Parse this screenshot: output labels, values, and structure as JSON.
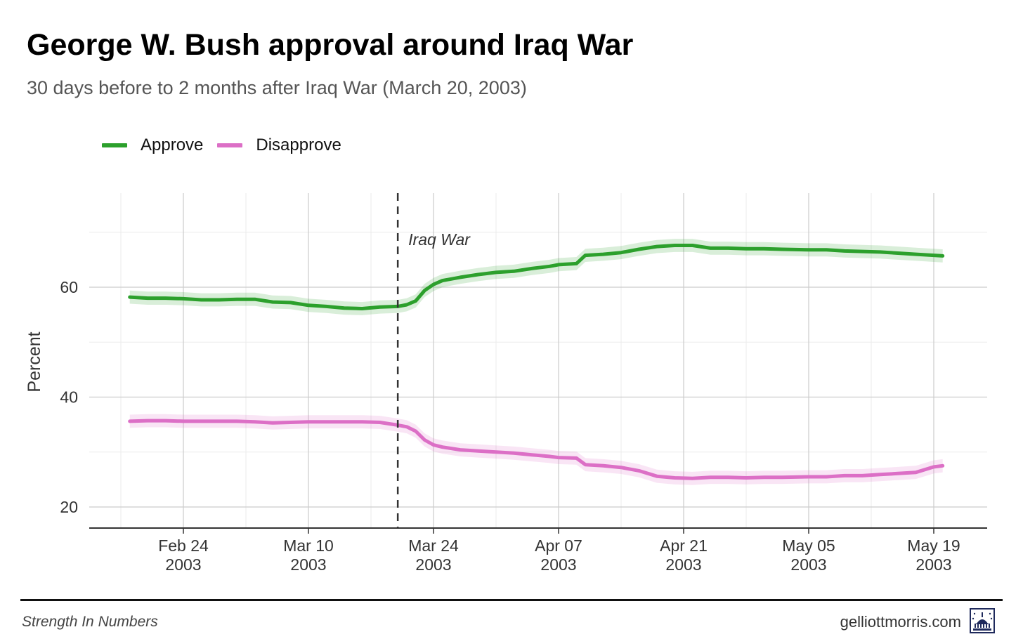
{
  "header": {
    "title": "George W. Bush approval around Iraq War",
    "subtitle": "30 days before to 2 months after Iraq War (March 20, 2003)"
  },
  "footer": {
    "left_text": "Strength In Numbers",
    "right_text": "gelliottmorris.com",
    "logo_icon": "capitol-dome-icon"
  },
  "chart_data": {
    "type": "line",
    "xlabel": "",
    "ylabel": "Percent",
    "x_start": "2003-02-18",
    "x_end": "2003-05-20",
    "ylim": [
      16,
      78
    ],
    "grid": true,
    "legend_position": "top-left",
    "y_ticks": [
      20,
      40,
      60
    ],
    "x_ticks": [
      {
        "date": "2003-02-24",
        "label": "Feb 24",
        "sublabel": "2003"
      },
      {
        "date": "2003-03-10",
        "label": "Mar 10",
        "sublabel": "2003"
      },
      {
        "date": "2003-03-24",
        "label": "Mar 24",
        "sublabel": "2003"
      },
      {
        "date": "2003-04-07",
        "label": "Apr 07",
        "sublabel": "2003"
      },
      {
        "date": "2003-04-21",
        "label": "Apr 21",
        "sublabel": "2003"
      },
      {
        "date": "2003-05-05",
        "label": "May 05",
        "sublabel": "2003"
      },
      {
        "date": "2003-05-19",
        "label": "May 19",
        "sublabel": "2003"
      }
    ],
    "annotations": [
      {
        "date": "2003-03-20",
        "label": "Iraq War",
        "style": "dashed-vertical"
      }
    ],
    "series": [
      {
        "name": "Approve",
        "color": "#2ca02c",
        "band_color": "#2ca02c",
        "points": [
          [
            "2003-02-18",
            58.2
          ],
          [
            "2003-02-20",
            58.0
          ],
          [
            "2003-02-22",
            58.0
          ],
          [
            "2003-02-24",
            57.9
          ],
          [
            "2003-02-26",
            57.7
          ],
          [
            "2003-02-28",
            57.7
          ],
          [
            "2003-03-02",
            57.8
          ],
          [
            "2003-03-04",
            57.8
          ],
          [
            "2003-03-06",
            57.3
          ],
          [
            "2003-03-08",
            57.2
          ],
          [
            "2003-03-10",
            56.7
          ],
          [
            "2003-03-12",
            56.5
          ],
          [
            "2003-03-14",
            56.2
          ],
          [
            "2003-03-16",
            56.1
          ],
          [
            "2003-03-18",
            56.4
          ],
          [
            "2003-03-20",
            56.5
          ],
          [
            "2003-03-21",
            56.8
          ],
          [
            "2003-03-22",
            57.5
          ],
          [
            "2003-03-23",
            59.4
          ],
          [
            "2003-03-24",
            60.5
          ],
          [
            "2003-03-25",
            61.2
          ],
          [
            "2003-03-27",
            61.8
          ],
          [
            "2003-03-29",
            62.3
          ],
          [
            "2003-03-31",
            62.7
          ],
          [
            "2003-04-02",
            62.9
          ],
          [
            "2003-04-04",
            63.4
          ],
          [
            "2003-04-06",
            63.8
          ],
          [
            "2003-04-07",
            64.1
          ],
          [
            "2003-04-09",
            64.3
          ],
          [
            "2003-04-10",
            65.8
          ],
          [
            "2003-04-12",
            66.0
          ],
          [
            "2003-04-14",
            66.3
          ],
          [
            "2003-04-16",
            66.9
          ],
          [
            "2003-04-18",
            67.4
          ],
          [
            "2003-04-20",
            67.6
          ],
          [
            "2003-04-22",
            67.6
          ],
          [
            "2003-04-24",
            67.1
          ],
          [
            "2003-04-26",
            67.1
          ],
          [
            "2003-04-28",
            67.0
          ],
          [
            "2003-04-30",
            67.0
          ],
          [
            "2003-05-02",
            66.9
          ],
          [
            "2003-05-05",
            66.8
          ],
          [
            "2003-05-07",
            66.8
          ],
          [
            "2003-05-09",
            66.6
          ],
          [
            "2003-05-11",
            66.5
          ],
          [
            "2003-05-13",
            66.4
          ],
          [
            "2003-05-15",
            66.2
          ],
          [
            "2003-05-17",
            66.0
          ],
          [
            "2003-05-19",
            65.8
          ],
          [
            "2003-05-20",
            65.7
          ]
        ]
      },
      {
        "name": "Disapprove",
        "color": "#dc6fc6",
        "band_color": "#dc6fc6",
        "points": [
          [
            "2003-02-18",
            35.6
          ],
          [
            "2003-02-20",
            35.7
          ],
          [
            "2003-02-22",
            35.7
          ],
          [
            "2003-02-24",
            35.6
          ],
          [
            "2003-02-26",
            35.6
          ],
          [
            "2003-02-28",
            35.6
          ],
          [
            "2003-03-02",
            35.6
          ],
          [
            "2003-03-04",
            35.5
          ],
          [
            "2003-03-06",
            35.3
          ],
          [
            "2003-03-08",
            35.4
          ],
          [
            "2003-03-10",
            35.5
          ],
          [
            "2003-03-12",
            35.5
          ],
          [
            "2003-03-14",
            35.5
          ],
          [
            "2003-03-16",
            35.5
          ],
          [
            "2003-03-18",
            35.4
          ],
          [
            "2003-03-20",
            34.9
          ],
          [
            "2003-03-21",
            34.6
          ],
          [
            "2003-03-22",
            33.8
          ],
          [
            "2003-03-23",
            32.2
          ],
          [
            "2003-03-24",
            31.3
          ],
          [
            "2003-03-25",
            30.9
          ],
          [
            "2003-03-27",
            30.4
          ],
          [
            "2003-03-29",
            30.2
          ],
          [
            "2003-03-31",
            30.0
          ],
          [
            "2003-04-02",
            29.8
          ],
          [
            "2003-04-04",
            29.5
          ],
          [
            "2003-04-06",
            29.2
          ],
          [
            "2003-04-07",
            29.0
          ],
          [
            "2003-04-09",
            28.9
          ],
          [
            "2003-04-10",
            27.7
          ],
          [
            "2003-04-12",
            27.5
          ],
          [
            "2003-04-14",
            27.2
          ],
          [
            "2003-04-16",
            26.6
          ],
          [
            "2003-04-18",
            25.6
          ],
          [
            "2003-04-20",
            25.3
          ],
          [
            "2003-04-22",
            25.2
          ],
          [
            "2003-04-24",
            25.4
          ],
          [
            "2003-04-26",
            25.4
          ],
          [
            "2003-04-28",
            25.3
          ],
          [
            "2003-04-30",
            25.4
          ],
          [
            "2003-05-02",
            25.4
          ],
          [
            "2003-05-05",
            25.5
          ],
          [
            "2003-05-07",
            25.5
          ],
          [
            "2003-05-09",
            25.7
          ],
          [
            "2003-05-11",
            25.7
          ],
          [
            "2003-05-13",
            25.9
          ],
          [
            "2003-05-15",
            26.1
          ],
          [
            "2003-05-17",
            26.3
          ],
          [
            "2003-05-19",
            27.3
          ],
          [
            "2003-05-20",
            27.5
          ]
        ]
      }
    ]
  }
}
